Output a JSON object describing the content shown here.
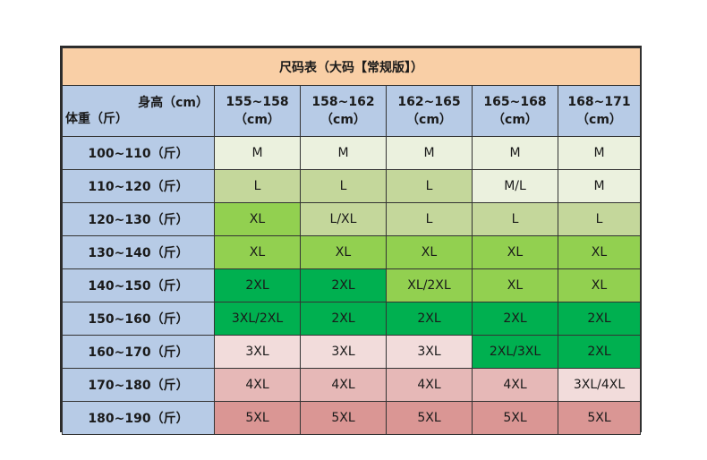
{
  "title": "尺码表（大码【常规版】）",
  "corner": {
    "height_label": "身高（cm）",
    "weight_label": "体重（斤）"
  },
  "columns": [
    {
      "range": "155~158",
      "unit": "（cm）"
    },
    {
      "range": "158~162",
      "unit": "（cm）"
    },
    {
      "range": "162~165",
      "unit": "（cm）"
    },
    {
      "range": "165~168",
      "unit": "（cm）"
    },
    {
      "range": "168~171",
      "unit": "（cm）"
    }
  ],
  "rows": [
    {
      "label": "100~110（斤）",
      "sizes": [
        "M",
        "M",
        "M",
        "M",
        "M"
      ]
    },
    {
      "label": "110~120（斤）",
      "sizes": [
        "L",
        "L",
        "L",
        "M/L",
        "M"
      ]
    },
    {
      "label": "120~130（斤）",
      "sizes": [
        "XL",
        "L/XL",
        "L",
        "L",
        "L"
      ]
    },
    {
      "label": "130~140（斤）",
      "sizes": [
        "XL",
        "XL",
        "XL",
        "XL",
        "XL"
      ]
    },
    {
      "label": "140~150（斤）",
      "sizes": [
        "2XL",
        "2XL",
        "XL/2XL",
        "XL",
        "XL"
      ]
    },
    {
      "label": "150~160（斤）",
      "sizes": [
        "3XL/2XL",
        "2XL",
        "2XL",
        "2XL",
        "2XL"
      ]
    },
    {
      "label": "160~170（斤）",
      "sizes": [
        "3XL",
        "3XL",
        "3XL",
        "2XL/3XL",
        "2XL"
      ]
    },
    {
      "label": "170~180（斤）",
      "sizes": [
        "4XL",
        "4XL",
        "4XL",
        "4XL",
        "3XL/4XL"
      ]
    },
    {
      "label": "180~190（斤）",
      "sizes": [
        "5XL",
        "5XL",
        "5XL",
        "5XL",
        "5XL"
      ]
    }
  ],
  "size_colors": {
    "M": "#ebf1de",
    "L": "#c4d79b",
    "M/L": "#ebf1de",
    "L/XL": "#c4d79b",
    "XL": "#92d050",
    "XL/2XL": "#92d050",
    "2XL": "#00b050",
    "3XL/2XL": "#00b050",
    "2XL/3XL": "#00b050",
    "3XL": "#f2dcdb",
    "4XL": "#e6b8b7",
    "3XL/4XL": "#f2dcdb",
    "5XL": "#da9694"
  },
  "colors": {
    "title_bg": "#f9cfa6",
    "header_bg": "#b7cbe6"
  }
}
